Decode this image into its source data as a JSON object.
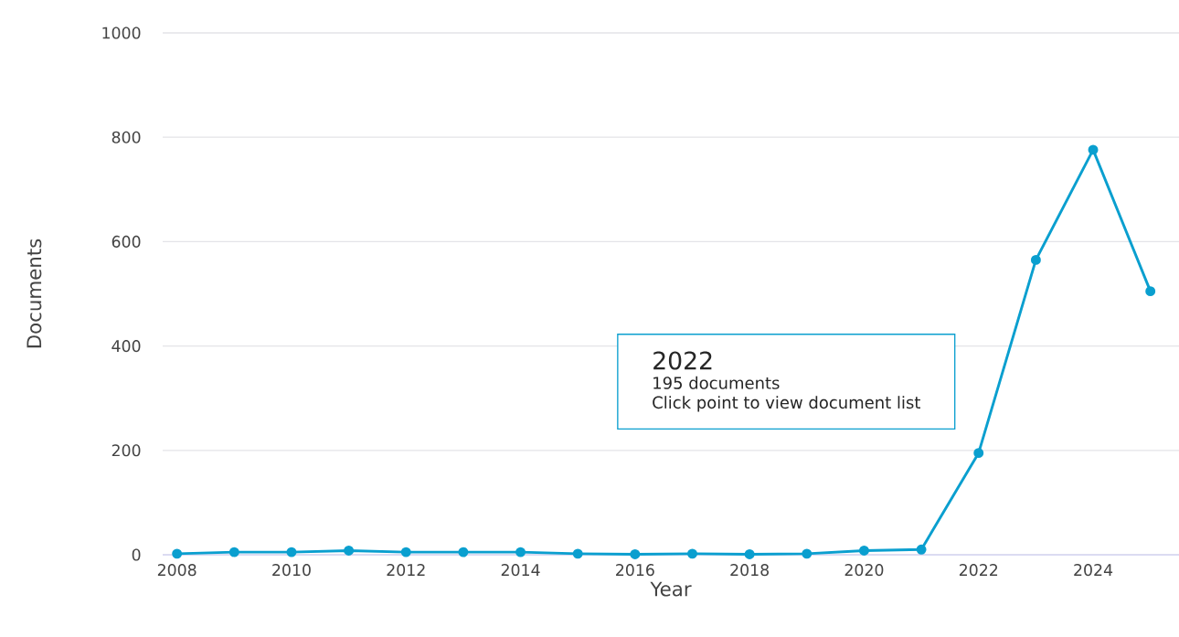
{
  "chart_data": {
    "type": "line",
    "xlabel": "Year",
    "ylabel": "Documents",
    "x": [
      2008,
      2009,
      2010,
      2011,
      2012,
      2013,
      2014,
      2015,
      2016,
      2017,
      2018,
      2019,
      2020,
      2021,
      2022,
      2023,
      2024,
      2025
    ],
    "values": [
      2,
      5,
      5,
      8,
      5,
      5,
      5,
      2,
      1,
      2,
      1,
      2,
      8,
      10,
      195,
      565,
      776,
      505
    ],
    "color": "#0a9fcf",
    "marker": "circle",
    "line_style": "solid",
    "grid": "y",
    "xlim": [
      2007.75,
      2025.5
    ],
    "xticks": [
      2008,
      2010,
      2012,
      2014,
      2016,
      2018,
      2020,
      2022,
      2024
    ],
    "ylim": [
      0,
      1000
    ],
    "yticks": [
      0,
      200,
      400,
      600,
      800,
      1000
    ],
    "annotations": [
      "2022",
      "195 documents",
      "Click point to view document list"
    ]
  }
}
